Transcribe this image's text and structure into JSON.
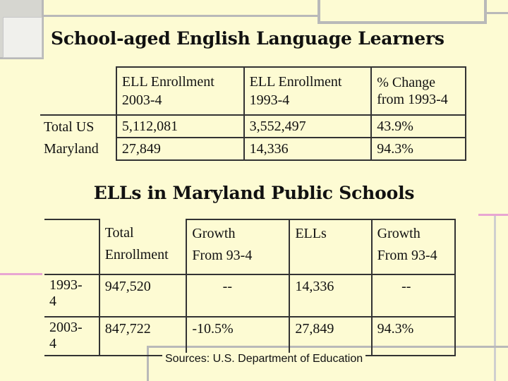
{
  "title": "School-aged English Language Learners",
  "table1": {
    "headers": [
      {
        "line1": "ELL Enrollment",
        "line2": "2003-4"
      },
      {
        "line1": "ELL Enrollment",
        "line2": "1993-4"
      },
      {
        "line1": "% Change",
        "line2": "from 1993-4"
      }
    ],
    "rows": [
      {
        "label": "Total US",
        "cells": [
          "5,112,081",
          "3,552,497",
          "43.9%"
        ]
      },
      {
        "label": "Maryland",
        "cells": [
          "27,849",
          "14,336",
          "94.3%"
        ]
      }
    ]
  },
  "subtitle": "ELLs in Maryland Public Schools",
  "table2": {
    "headers": [
      {
        "line1": "Total",
        "line2": "Enrollment"
      },
      {
        "line1": "Growth",
        "line2": "From 93-4"
      },
      {
        "line1": "ELLs",
        "line2": ""
      },
      {
        "line1": "Growth",
        "line2": "From 93-4"
      }
    ],
    "rows": [
      {
        "label1": "1993-",
        "label2": "4",
        "cells": [
          "947,520",
          "--",
          "14,336",
          "--"
        ]
      },
      {
        "label1": "2003-",
        "label2": "4",
        "cells": [
          "847,722",
          "-10.5%",
          "27,849",
          "94.3%"
        ]
      }
    ]
  },
  "source": "Sources: U.S. Department of Education"
}
